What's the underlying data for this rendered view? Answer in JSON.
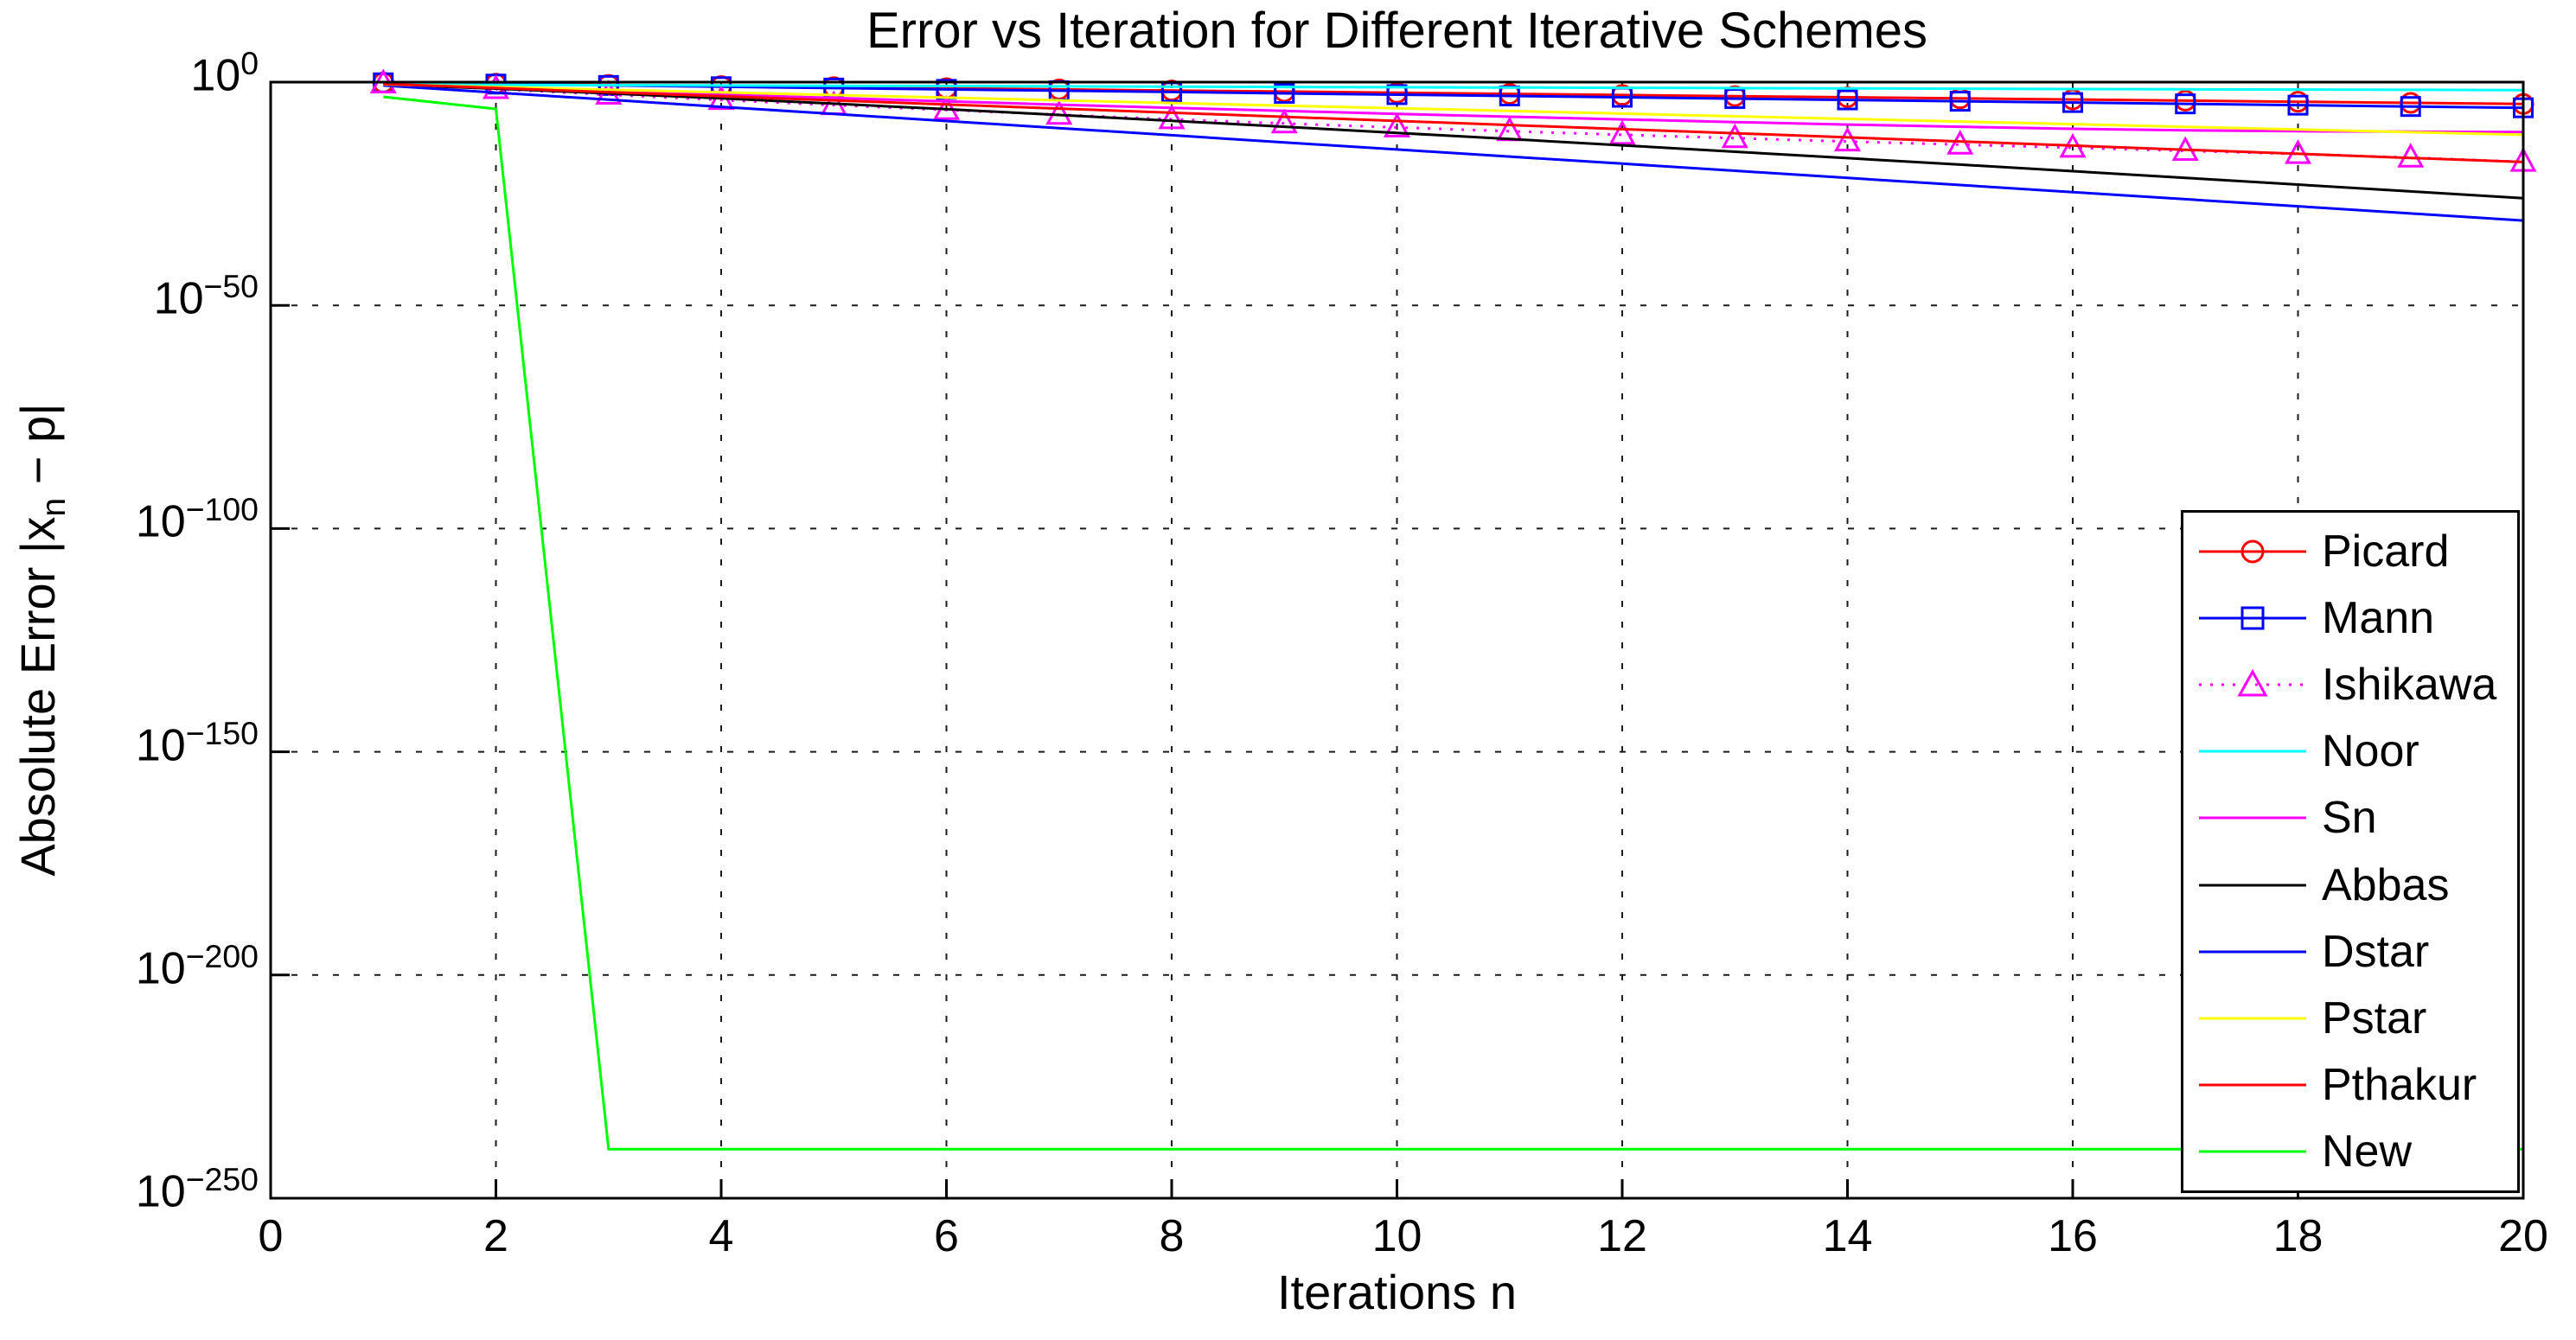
{
  "chart_data": {
    "type": "line",
    "title": "Error vs Iteration for Different Iterative Schemes",
    "xlabel": "Iterations n",
    "ylabel_parts": [
      "Absolute Error |x",
      "n",
      " − p|"
    ],
    "x_axis": {
      "min": 0,
      "max": 20,
      "ticks": [
        0,
        2,
        4,
        6,
        8,
        10,
        12,
        14,
        16,
        18,
        20
      ]
    },
    "y_axis": {
      "scale": "log10",
      "min_exponent": -250,
      "max_exponent": 0,
      "tick_exponents": [
        0,
        -50,
        -100,
        -150,
        -200,
        -250
      ]
    },
    "grid": true,
    "legend_position": "lower-right",
    "x": [
      1,
      2,
      3,
      4,
      5,
      6,
      7,
      8,
      9,
      10,
      11,
      12,
      13,
      14,
      15,
      16,
      17,
      18,
      19,
      20
    ],
    "series": [
      {
        "name": "Picard",
        "color": "#ff0000",
        "style": "solid",
        "marker": "circle",
        "log10_values": [
          -0.1,
          -0.35,
          -0.61,
          -0.86,
          -1.11,
          -1.36,
          -1.62,
          -1.87,
          -2.12,
          -2.37,
          -2.63,
          -2.88,
          -3.13,
          -3.38,
          -3.64,
          -3.89,
          -4.14,
          -4.39,
          -4.65,
          -4.9
        ]
      },
      {
        "name": "Mann",
        "color": "#0000ff",
        "style": "solid",
        "marker": "square",
        "log10_values": [
          -0.15,
          -0.44,
          -0.74,
          -1.03,
          -1.33,
          -1.62,
          -1.92,
          -2.21,
          -2.51,
          -2.8,
          -3.1,
          -3.39,
          -3.69,
          -3.98,
          -4.28,
          -4.57,
          -4.87,
          -5.16,
          -5.46,
          -5.75
        ]
      },
      {
        "name": "Ishikawa",
        "color": "#ff00ff",
        "style": "dotted",
        "marker": "triangle",
        "log10_values": [
          -0.3,
          -1.55,
          -2.8,
          -4.0,
          -5.15,
          -6.25,
          -7.3,
          -8.3,
          -9.25,
          -10.15,
          -11.0,
          -11.8,
          -12.55,
          -13.3,
          -14.0,
          -14.7,
          -15.4,
          -16.1,
          -16.9,
          -17.85
        ]
      },
      {
        "name": "Noor",
        "color": "#00ffff",
        "style": "solid",
        "marker": "none",
        "log10_values": [
          -0.55,
          -0.62,
          -0.68,
          -0.75,
          -0.81,
          -0.88,
          -0.94,
          -1.01,
          -1.08,
          -1.14,
          -1.21,
          -1.27,
          -1.34,
          -1.4,
          -1.47,
          -1.54,
          -1.6,
          -1.67,
          -1.73,
          -1.8
        ]
      },
      {
        "name": "Sn",
        "color": "#ff00ff",
        "style": "solid",
        "marker": "none",
        "log10_values": [
          -0.5,
          -1.25,
          -2.0,
          -2.8,
          -3.55,
          -4.3,
          -5.05,
          -5.75,
          -6.45,
          -7.1,
          -7.75,
          -8.35,
          -8.95,
          -9.5,
          -10.0,
          -10.45,
          -10.8,
          -11.0,
          -11.1,
          -11.2
        ]
      },
      {
        "name": "Abbas",
        "color": "#000000",
        "style": "solid",
        "marker": "none",
        "log10_values": [
          -0.6,
          -1.46,
          -2.51,
          -3.64,
          -4.83,
          -6.07,
          -7.35,
          -8.66,
          -10.0,
          -11.36,
          -12.74,
          -14.15,
          -15.58,
          -17.02,
          -18.48,
          -19.95,
          -21.44,
          -22.95,
          -24.47,
          -26.0
        ]
      },
      {
        "name": "Dstar",
        "color": "#0000ff",
        "style": "solid",
        "marker": "none",
        "log10_values": [
          -0.75,
          -2.34,
          -3.93,
          -5.53,
          -7.12,
          -8.71,
          -10.3,
          -11.89,
          -13.49,
          -15.08,
          -16.67,
          -18.26,
          -19.85,
          -21.45,
          -23.04,
          -24.63,
          -26.22,
          -27.81,
          -29.41,
          -31.0
        ]
      },
      {
        "name": "Pstar",
        "color": "#ffff00",
        "style": "solid",
        "marker": "none",
        "log10_values": [
          -0.5,
          -1.09,
          -1.69,
          -2.28,
          -2.88,
          -3.47,
          -4.07,
          -4.66,
          -5.26,
          -5.85,
          -6.45,
          -7.04,
          -7.64,
          -8.23,
          -8.83,
          -9.42,
          -10.02,
          -10.61,
          -11.21,
          -11.8
        ]
      },
      {
        "name": "Pthakur",
        "color": "#ff0000",
        "style": "solid",
        "marker": "none",
        "log10_values": [
          -0.4,
          -1.32,
          -2.24,
          -3.16,
          -4.08,
          -5.01,
          -5.93,
          -6.85,
          -7.77,
          -8.69,
          -9.61,
          -10.53,
          -11.45,
          -12.37,
          -13.29,
          -14.21,
          -15.14,
          -16.06,
          -16.98,
          -17.9
        ]
      },
      {
        "name": "New",
        "color": "#00ff00",
        "style": "solid",
        "marker": "none",
        "log10_values": [
          -3.3,
          -6.0,
          -239,
          -239,
          -239,
          -239,
          -239,
          -239,
          -239,
          -239,
          -239,
          -239,
          -239,
          -239,
          -239,
          -239,
          -239,
          -239,
          -239,
          -239
        ]
      }
    ]
  }
}
